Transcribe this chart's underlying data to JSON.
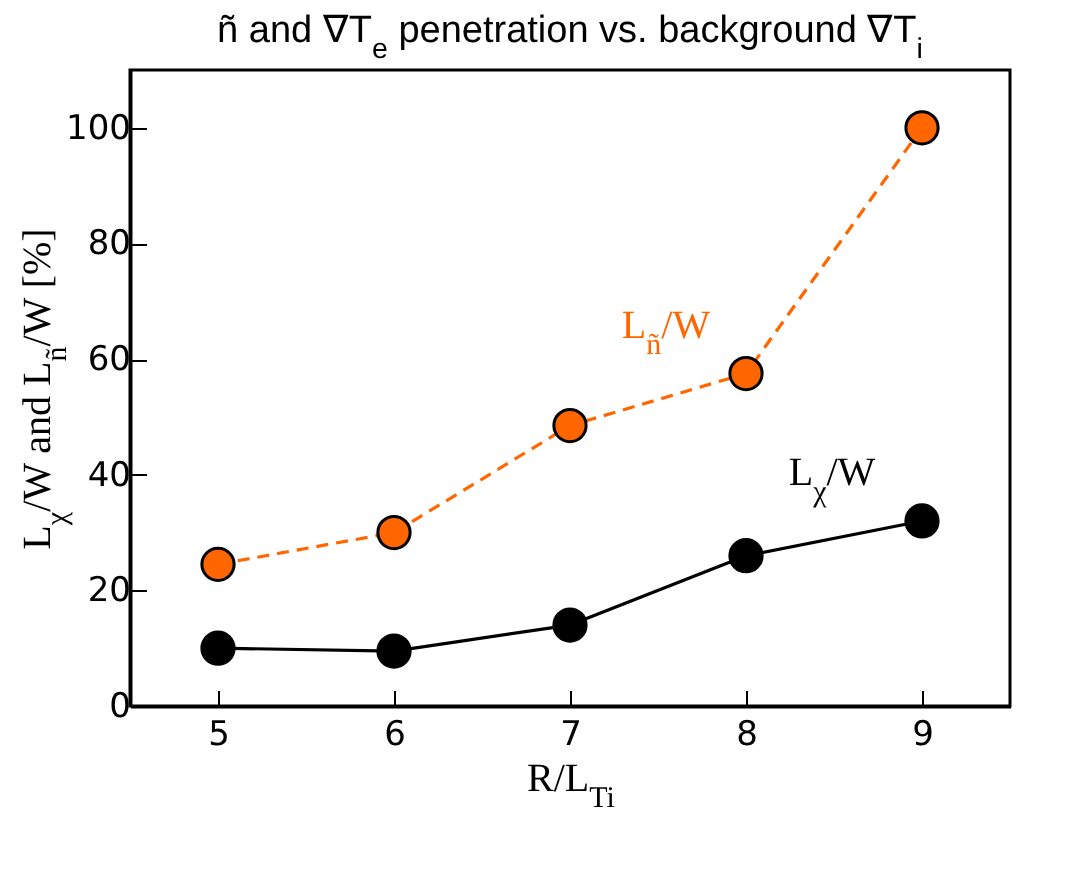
{
  "chart_data": {
    "type": "line",
    "title": "ñ and ∇T$_{e}$ penetration vs. background ∇T$_{i}$",
    "xlabel": "R/L$_{Ti}$",
    "ylabel": "L$_{χ}$/W and L$_{ñ}$/W [%]",
    "x": [
      5,
      6,
      7,
      8,
      9
    ],
    "series": [
      {
        "name": "L$_{ñ}$/W",
        "color": "#ff6600",
        "line_style": "dashed",
        "values": [
          24.5,
          30,
          48.5,
          57.5,
          100
        ]
      },
      {
        "name": "L$_{χ}$/W",
        "color": "#000000",
        "line_style": "solid",
        "values": [
          10,
          9.5,
          14,
          26,
          32
        ]
      }
    ],
    "xlim": [
      4.5,
      9.5
    ],
    "xticks": [
      5,
      6,
      7,
      8,
      9
    ],
    "ylim": [
      0,
      110
    ],
    "yticks": [
      0,
      20,
      40,
      60,
      80,
      100
    ],
    "marker": "circle",
    "legend": false,
    "grid": false
  }
}
